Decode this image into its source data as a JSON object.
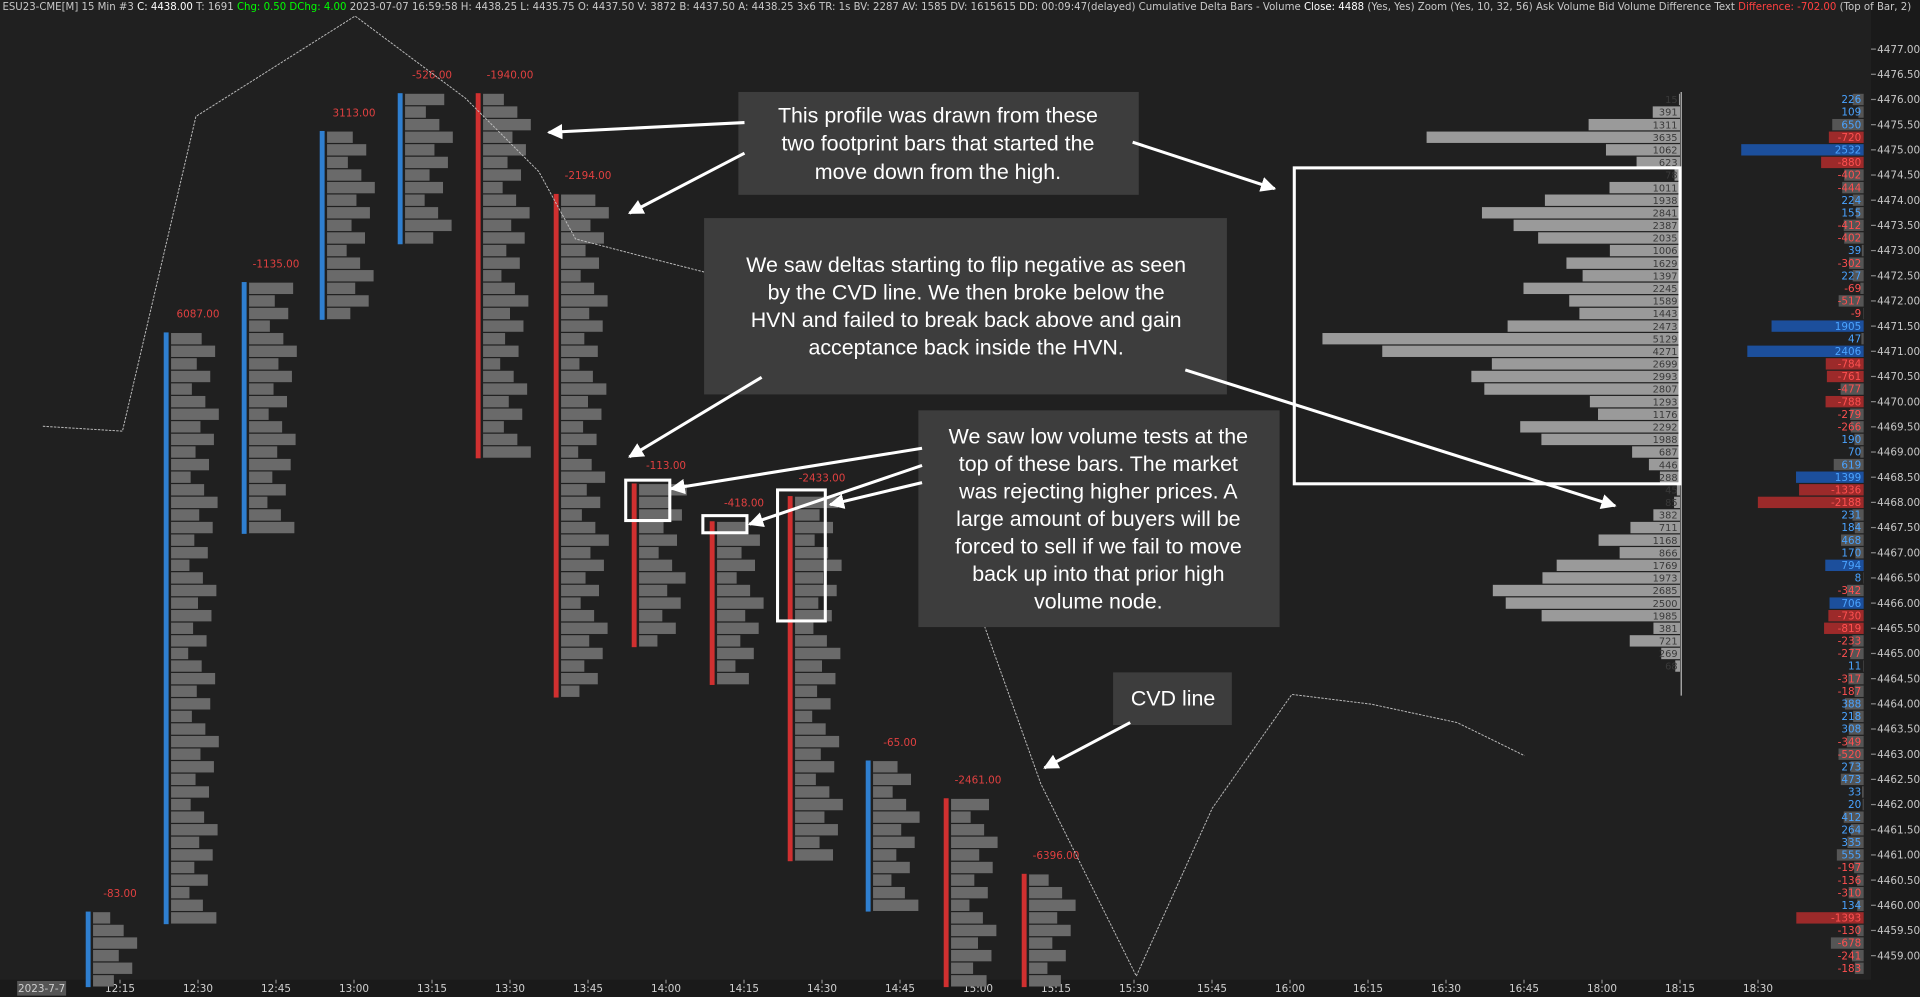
{
  "header": {
    "segments": [
      "ESU23-CME[M]  15 Min  #3",
      "C: 4438.00",
      "T: 1691",
      "Chg: 0.50  DChg: 4.00",
      "2023-07-07 16:59:58 H: 4438.25 L: 4435.75 O: 4437.50 V: 3872 B: 4437.50 A: 4438.25 3x6 TR: 1s BV: 2287 AV: 1585 DV: 1615615 DD: 00:09:47(delayed) Cumulative Delta Bars - Volume",
      "Close: 4488",
      "(Yes, Yes)  Zoom  (Yes, 10, 32, 56)  Ask Volume Bid Volume Difference Text",
      "Difference: -702.00",
      "(Top of Bar, 2)"
    ]
  },
  "price_axis": {
    "ticks": [
      {
        "value": 4477,
        "label": "4477.00"
      },
      {
        "value": 4476.5,
        "label": "4476.50"
      },
      {
        "value": 4476,
        "label": "4476.00"
      },
      {
        "value": 4475.5,
        "label": "4475.50"
      },
      {
        "value": 4475,
        "label": "4475.00"
      },
      {
        "value": 4474.5,
        "label": "4474.50"
      },
      {
        "value": 4474,
        "label": "4474.00"
      },
      {
        "value": 4473.5,
        "label": "4473.50"
      },
      {
        "value": 4473,
        "label": "4473.00"
      },
      {
        "value": 4472.5,
        "label": "4472.50"
      },
      {
        "value": 4472,
        "label": "4472.00"
      },
      {
        "value": 4471.5,
        "label": "4471.50"
      },
      {
        "value": 4471,
        "label": "4471.00"
      },
      {
        "value": 4470.5,
        "label": "4470.50"
      },
      {
        "value": 4470,
        "label": "4470.00"
      },
      {
        "value": 4469.5,
        "label": "4469.50"
      },
      {
        "value": 4469,
        "label": "4469.00"
      },
      {
        "value": 4468.5,
        "label": "4468.50"
      },
      {
        "value": 4468,
        "label": "4468.00"
      },
      {
        "value": 4467.5,
        "label": "4467.50"
      },
      {
        "value": 4467,
        "label": "4467.00"
      },
      {
        "value": 4466.5,
        "label": "4466.50"
      },
      {
        "value": 4466,
        "label": "4466.00"
      },
      {
        "value": 4465.5,
        "label": "4465.50"
      },
      {
        "value": 4465,
        "label": "4465.00"
      },
      {
        "value": 4464.5,
        "label": "4464.50"
      },
      {
        "value": 4464,
        "label": "4464.00"
      },
      {
        "value": 4463.5,
        "label": "4463.50"
      },
      {
        "value": 4463,
        "label": "4463.00"
      },
      {
        "value": 4462.5,
        "label": "4462.50"
      },
      {
        "value": 4462,
        "label": "4462.00"
      },
      {
        "value": 4461.5,
        "label": "4461.50"
      },
      {
        "value": 4461,
        "label": "4461.00"
      },
      {
        "value": 4460.5,
        "label": "4460.50"
      },
      {
        "value": 4460,
        "label": "4460.00"
      },
      {
        "value": 4459.5,
        "label": "4459.50"
      },
      {
        "value": 4459,
        "label": "4459.00"
      }
    ]
  },
  "time_axis": {
    "date_label": "2023-7-7",
    "labels": [
      "12:15",
      "12:30",
      "12:45",
      "13:00",
      "13:15",
      "13:30",
      "13:45",
      "14:00",
      "14:15",
      "14:30",
      "14:45",
      "15:00",
      "15:15",
      "15:30",
      "15:45",
      "16:00",
      "16:15",
      "16:30",
      "16:45",
      "18:00",
      "18:15",
      "18:30"
    ]
  },
  "footprint_bars": [
    {
      "time": "12:15",
      "high": 4459.75,
      "low": 4458.5,
      "direction": "up",
      "delta_label": "-83.00"
    },
    {
      "time": "12:30",
      "high": 4471.25,
      "low": 4459.75,
      "direction": "up",
      "delta_label": "6087.00"
    },
    {
      "time": "12:45",
      "high": 4472.25,
      "low": 4467.5,
      "direction": "up",
      "delta_label": "-1135.00"
    },
    {
      "time": "13:00",
      "high": 4475.25,
      "low": 4471.75,
      "direction": "up",
      "delta_label": "3113.00"
    },
    {
      "time": "13:15",
      "high": 4476,
      "low": 4473.25,
      "direction": "up",
      "delta_label": "-526.00"
    },
    {
      "time": "13:30",
      "high": 4476,
      "low": 4469,
      "direction": "down",
      "delta_label": "-1940.00"
    },
    {
      "time": "13:45",
      "high": 4474,
      "low": 4464.25,
      "direction": "down",
      "delta_label": "-2194.00"
    },
    {
      "time": "14:00",
      "high": 4468.25,
      "low": 4465.25,
      "direction": "down",
      "delta_label": "-113.00"
    },
    {
      "time": "14:15",
      "high": 4467.5,
      "low": 4464.5,
      "direction": "down",
      "delta_label": "-418.00"
    },
    {
      "time": "14:30",
      "high": 4468,
      "low": 4461,
      "direction": "down",
      "delta_label": "-2433.00"
    },
    {
      "time": "14:45",
      "high": 4462.75,
      "low": 4460,
      "direction": "up",
      "delta_label": "-65.00"
    },
    {
      "time": "15:00",
      "high": 4462,
      "low": 4458.5,
      "direction": "down",
      "delta_label": "-2461.00"
    },
    {
      "time": "15:15",
      "high": 4460.5,
      "low": 4458.5,
      "direction": "down",
      "delta_label": "-6396.00"
    }
  ],
  "volume_profile": {
    "top_price": 4476,
    "tick_size": 0.25,
    "values": [
      15,
      391,
      1311,
      3635,
      1062,
      623,
      78,
      1011,
      1938,
      2841,
      2387,
      2035,
      1006,
      1629,
      1397,
      2245,
      1589,
      1443,
      2473,
      5129,
      4271,
      2699,
      2993,
      2807,
      1293,
      1176,
      2292,
      1988,
      687,
      446,
      288,
      45,
      85,
      382,
      711,
      1168,
      866,
      1769,
      1973,
      2685,
      2500,
      1985,
      381,
      721,
      269,
      68
    ]
  },
  "difference_column": {
    "top_price": 4476,
    "tick_size": 0.25,
    "values": [
      226,
      109,
      650,
      -720,
      2532,
      -880,
      -402,
      -444,
      224,
      155,
      -412,
      -402,
      39,
      -302,
      227,
      -69,
      -517,
      -9,
      1905,
      47,
      2406,
      -784,
      -761,
      -477,
      -788,
      -279,
      -266,
      190,
      70,
      619,
      1399,
      -1336,
      -2188,
      231,
      184,
      468,
      170,
      794,
      8,
      -342,
      706,
      -730,
      -819,
      -233,
      -277,
      11,
      -317,
      -187,
      388,
      218,
      308,
      -349,
      -520,
      273,
      473,
      33,
      20,
      412,
      264,
      335,
      555,
      -197,
      -136,
      -310,
      134,
      -1393,
      -130,
      -678,
      -241,
      -183
    ]
  },
  "annotations": [
    {
      "lines": [
        "This profile was drawn from these",
        "two footprint bars that started the",
        "move down from the high."
      ]
    },
    {
      "lines": [
        "We saw deltas starting to flip negative as seen",
        "by the CVD line. We then broke below the",
        "HVN and failed to break back above and gain",
        "acceptance back inside the HVN."
      ]
    },
    {
      "lines": [
        "We saw low volume tests at the",
        "top of these bars. The market",
        "was rejecting higher prices. A",
        "large amount of buyers will be",
        "forced to sell if we fail to move",
        "back up into that prior high",
        "volume node."
      ]
    },
    {
      "lines": [
        "CVD line"
      ]
    }
  ]
}
